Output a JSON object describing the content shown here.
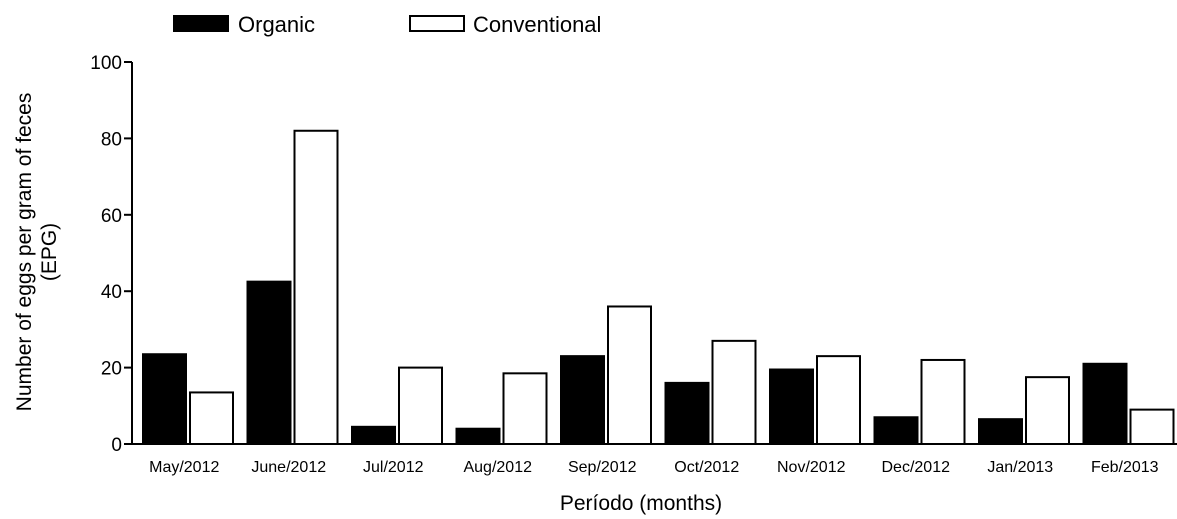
{
  "chart_data": {
    "type": "bar",
    "categories": [
      "May/2012",
      "June/2012",
      "Jul/2012",
      "Aug/2012",
      "Sep/2012",
      "Oct/2012",
      "Nov/2012",
      "Dec/2012",
      "Jan/2013",
      "Feb/2013"
    ],
    "series": [
      {
        "name": "Organic",
        "color": "#000000",
        "fill": "#000000",
        "values": [
          23.5,
          42.5,
          4.5,
          4.0,
          23.0,
          16.0,
          19.5,
          7.0,
          6.5,
          21.0
        ]
      },
      {
        "name": "Conventional",
        "color": "#000000",
        "fill": "#ffffff",
        "values": [
          13.5,
          82.0,
          20.0,
          18.5,
          36.0,
          27.0,
          23.0,
          22.0,
          17.5,
          9.0
        ]
      }
    ],
    "xlabel": "Período (months)",
    "ylabel_lines": [
      "Number of eggs per gram of feces",
      "(EPG)"
    ],
    "ylim": [
      0,
      100
    ],
    "yticks": [
      0,
      20,
      40,
      60,
      80,
      100
    ],
    "grid": false,
    "legend_position": "top-left"
  }
}
